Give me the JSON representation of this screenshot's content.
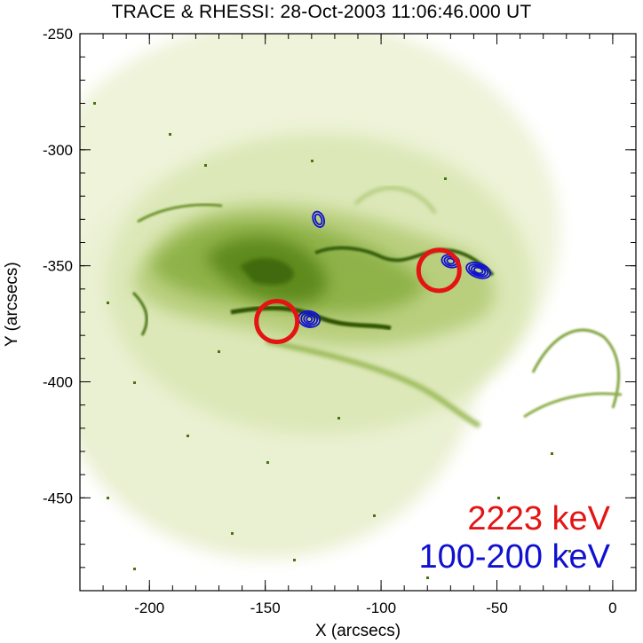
{
  "title": "TRACE & RHESSI:  28-Oct-2003 11:06:46.000 UT",
  "x_axis": {
    "label": "X (arcsecs)",
    "ticks": [
      "-200",
      "-150",
      "-100",
      "-50",
      "0"
    ],
    "range": [
      -230,
      10
    ]
  },
  "y_axis": {
    "label": "Y (arcsecs)",
    "ticks": [
      "-250",
      "-300",
      "-350",
      "-400",
      "-450"
    ],
    "range": [
      -490,
      -250
    ]
  },
  "legend": [
    {
      "label": "2223 keV",
      "color": "#e41414"
    },
    {
      "label": "100-200 keV",
      "color": "#1010d0"
    }
  ],
  "colors": {
    "image_tint": "#5a8a14",
    "gamma_circle": "#e41414",
    "hxr_contour": "#1010d0"
  },
  "gamma_sources": [
    {
      "x": -145,
      "y": -374
    },
    {
      "x": -75,
      "y": -352
    }
  ],
  "hxr_contours": [
    {
      "x": -131,
      "y": -373
    },
    {
      "x": -70,
      "y": -348
    },
    {
      "x": -58,
      "y": -352
    },
    {
      "x": -127,
      "y": -330
    }
  ]
}
